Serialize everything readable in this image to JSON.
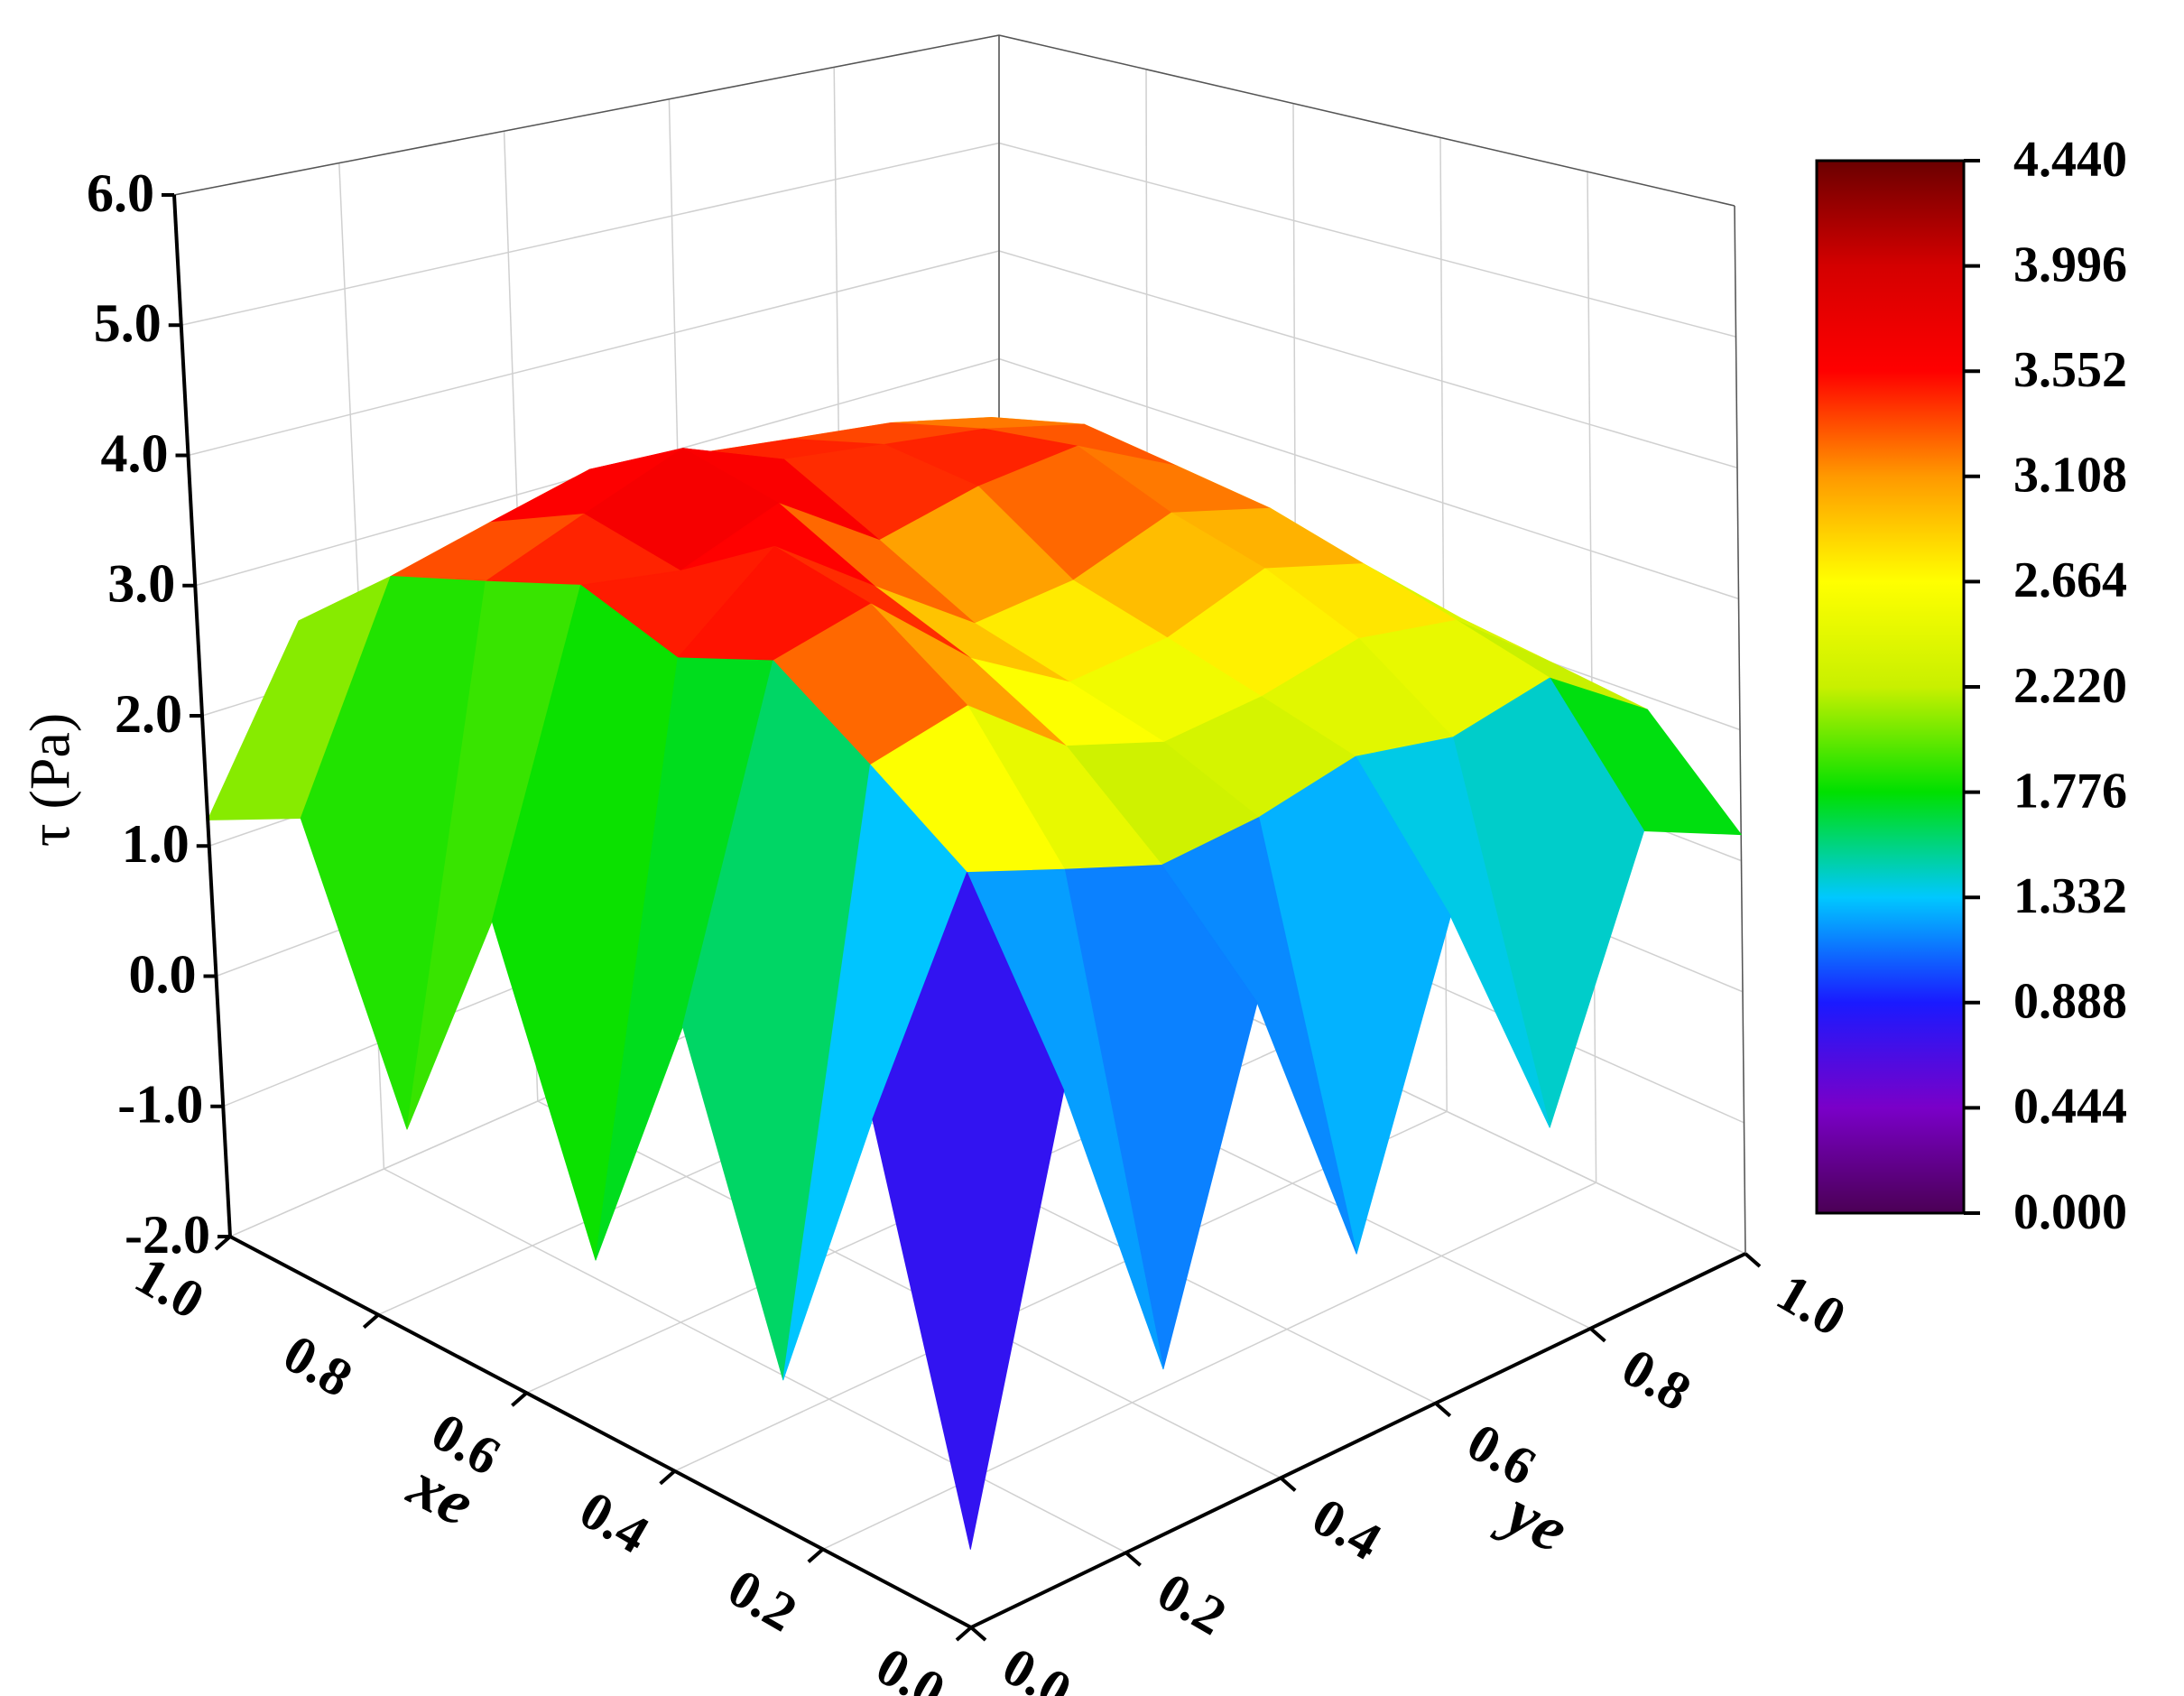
{
  "chart_data": {
    "type": "surface3d",
    "xlabel": "xe",
    "ylabel": "ye",
    "zlabel": "τ (Pa)",
    "xlim": [
      0,
      1
    ],
    "ylim": [
      0,
      1
    ],
    "zlim": [
      -2,
      6
    ],
    "xticks": [
      {
        "value": 0,
        "label": "0.0"
      },
      0.2,
      0.4,
      0.6,
      0.8,
      {
        "value": 1,
        "label": "1.0"
      }
    ],
    "yticks": [
      {
        "value": 0,
        "label": "0.0"
      },
      0.2,
      0.4,
      0.6,
      0.8,
      {
        "value": 1,
        "label": "1.0"
      }
    ],
    "zticks": [
      {
        "value": -2,
        "label": "-2.0"
      },
      {
        "value": -1,
        "label": "-1.0"
      },
      {
        "value": 0,
        "label": "0.0"
      },
      {
        "value": 1,
        "label": "1.0"
      },
      {
        "value": 2,
        "label": "2.0"
      },
      {
        "value": 3,
        "label": "3.0"
      },
      {
        "value": 4,
        "label": "4.0"
      },
      {
        "value": 5,
        "label": "5.0"
      },
      {
        "value": 6,
        "label": "6.0"
      }
    ],
    "clim": [
      0,
      4.44
    ],
    "cticks": [
      {
        "value": 0,
        "label": "0.000"
      },
      {
        "value": 0.444,
        "label": "0.444"
      },
      {
        "value": 0.888,
        "label": "0.888"
      },
      {
        "value": 1.332,
        "label": "1.332"
      },
      {
        "value": 1.776,
        "label": "1.776"
      },
      {
        "value": 2.22,
        "label": "2.220"
      },
      {
        "value": 2.664,
        "label": "2.664"
      },
      {
        "value": 3.108,
        "label": "3.108"
      },
      {
        "value": 3.552,
        "label": "3.552"
      },
      {
        "value": 3.996,
        "label": "3.996"
      },
      {
        "value": 4.44,
        "label": "4.440"
      }
    ],
    "colormap": [
      "#4b0055",
      "#7a00c8",
      "#1a1aff",
      "#00c8ff",
      "#00e000",
      "#c8f000",
      "#ffff00",
      "#ff9900",
      "#ff0000",
      "#d40000",
      "#6b0000"
    ],
    "grid": true,
    "x": [
      0,
      0.125,
      0.25,
      0.375,
      0.5,
      0.625,
      0.75,
      0.875,
      1
    ],
    "y": [
      0,
      0.125,
      0.25,
      0.375,
      0.5,
      0.625,
      0.75,
      0.875,
      1
    ],
    "z": [
      [
        -1.5,
        1.2,
        -0.9,
        1.3,
        -0.7,
        1.4,
        -0.4,
        1.5,
        1.2
      ],
      [
        1.0,
        2.4,
        2.2,
        2.0,
        2.1,
        2.3,
        2.2,
        2.4,
        1.9
      ],
      [
        -1.0,
        2.9,
        3.1,
        2.6,
        2.4,
        2.5,
        2.7,
        2.6,
        2.0
      ],
      [
        1.1,
        3.4,
        3.6,
        3.0,
        2.6,
        2.7,
        3.0,
        2.8,
        2.1
      ],
      [
        -0.8,
        3.2,
        3.8,
        3.3,
        2.8,
        2.9,
        3.2,
        3.0,
        2.2
      ],
      [
        1.3,
        3.5,
        3.4,
        3.7,
        3.2,
        3.4,
        3.5,
        3.1,
        2.2
      ],
      [
        -0.5,
        3.3,
        3.6,
        3.9,
        3.6,
        3.5,
        3.4,
        3.2,
        2.3
      ],
      [
        1.5,
        3.1,
        3.3,
        3.5,
        3.4,
        3.3,
        3.2,
        3.0,
        2.3
      ],
      [
        1.2,
        2.5,
        2.6,
        2.7,
        2.6,
        2.6,
        2.5,
        2.5,
        2.2
      ]
    ]
  }
}
